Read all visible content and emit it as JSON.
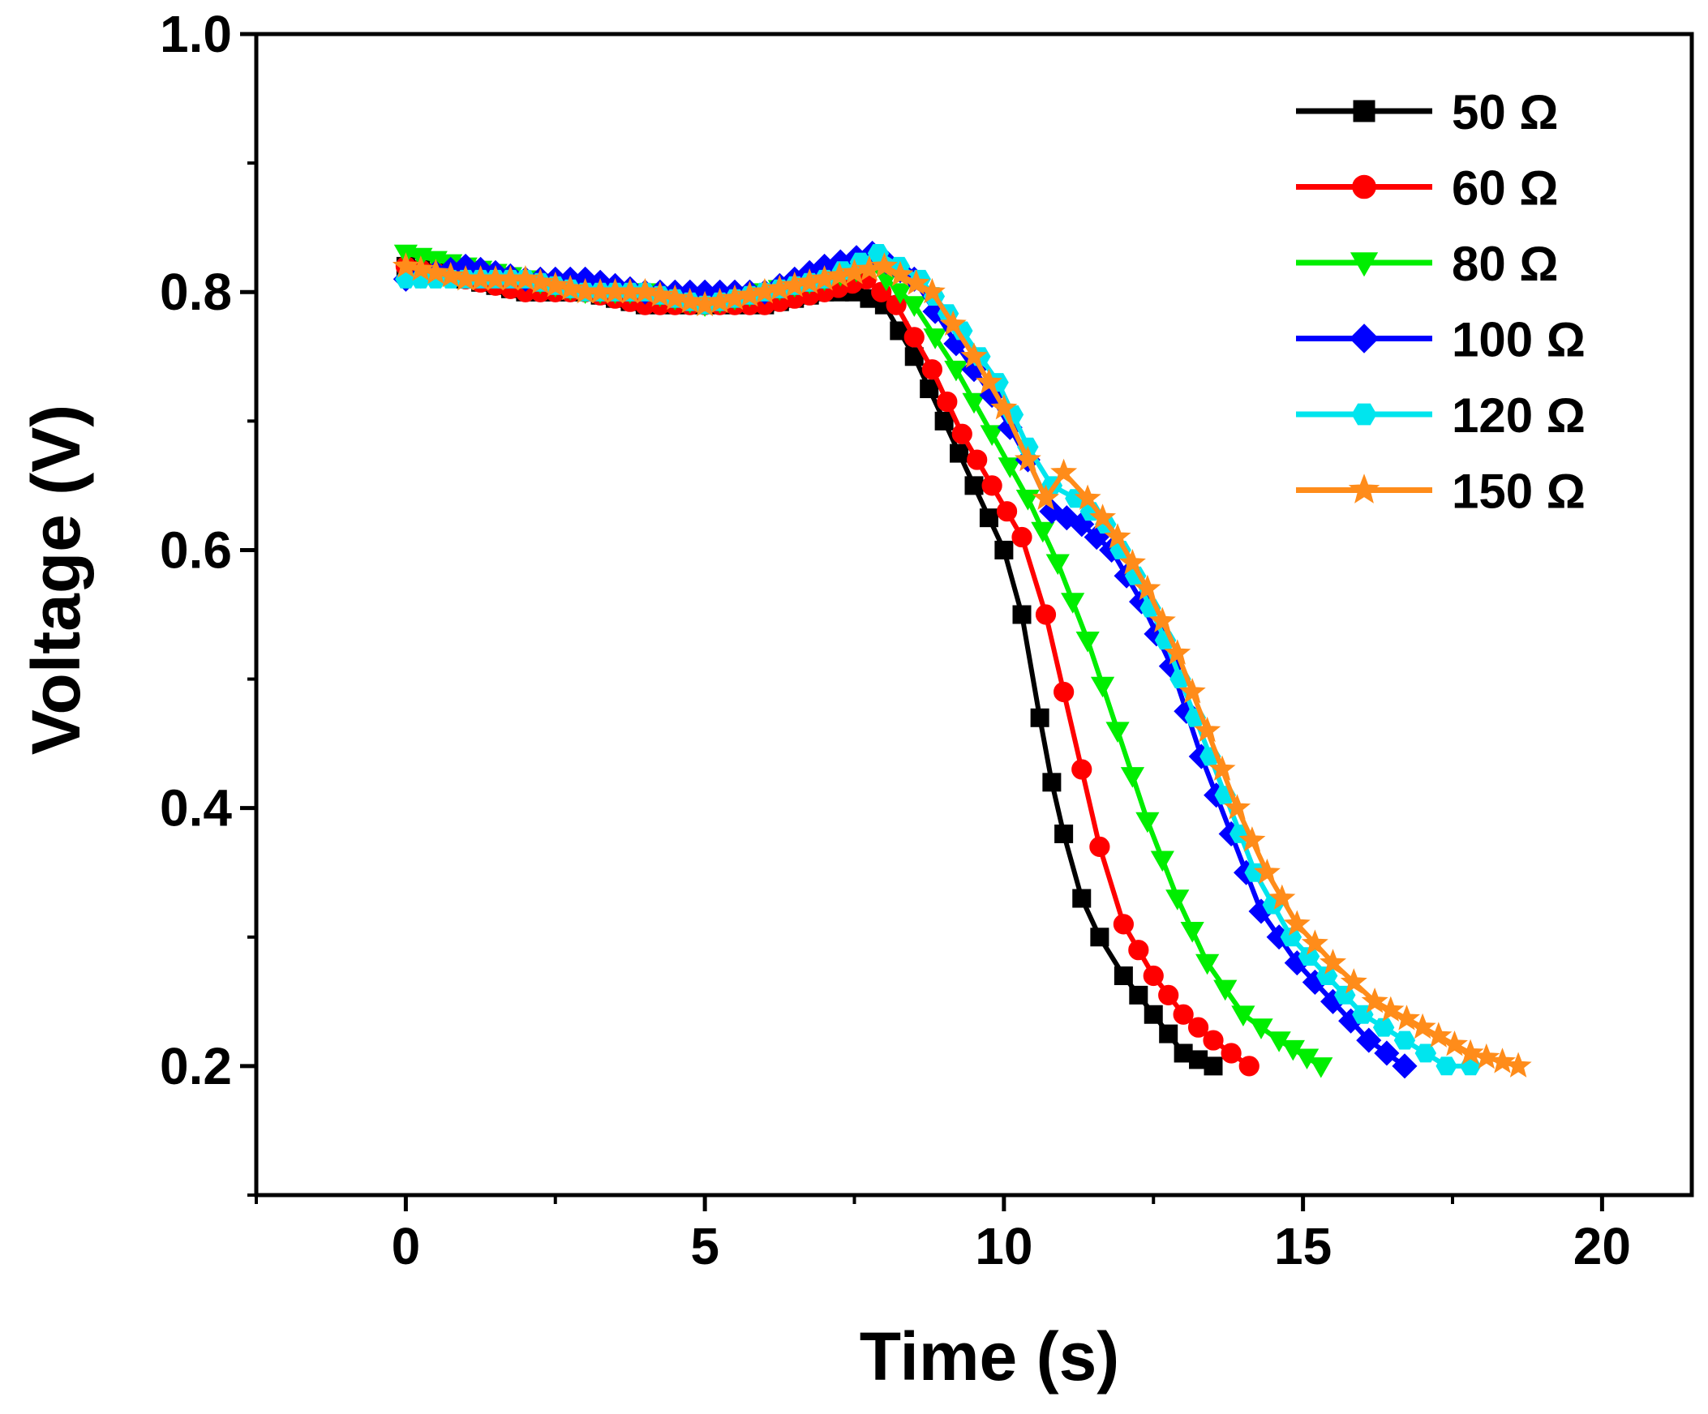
{
  "chart_data": {
    "type": "line",
    "title": "",
    "xlabel": "Time (s)",
    "ylabel": "Voltage (V)",
    "xlim": [
      -2.5,
      21.5
    ],
    "ylim": [
      0.1,
      1.0
    ],
    "x_ticks": [
      0,
      5,
      10,
      15,
      20
    ],
    "x_tick_labels": [
      "0",
      "5",
      "10",
      "15",
      "20"
    ],
    "y_ticks": [
      0.2,
      0.4,
      0.6,
      0.8,
      1.0
    ],
    "y_tick_labels": [
      "0.2",
      "0.4",
      "0.6",
      "0.8",
      "1.0"
    ],
    "grid": false,
    "legend_position": "top-right",
    "series": [
      {
        "name": "50 Ω",
        "color": "#000000",
        "marker": "square",
        "points": [
          [
            0,
            0.82
          ],
          [
            1,
            0.81
          ],
          [
            2,
            0.8
          ],
          [
            3,
            0.8
          ],
          [
            4,
            0.79
          ],
          [
            5,
            0.79
          ],
          [
            6,
            0.79
          ],
          [
            7,
            0.8
          ],
          [
            7.5,
            0.8
          ],
          [
            8,
            0.79
          ],
          [
            8.5,
            0.75
          ],
          [
            9,
            0.7
          ],
          [
            9.5,
            0.65
          ],
          [
            10,
            0.6
          ],
          [
            10.3,
            0.55
          ],
          [
            10.6,
            0.47
          ],
          [
            10.8,
            0.42
          ],
          [
            11,
            0.38
          ],
          [
            11.3,
            0.33
          ],
          [
            11.6,
            0.3
          ],
          [
            12,
            0.27
          ],
          [
            12.5,
            0.24
          ],
          [
            13,
            0.21
          ],
          [
            13.5,
            0.2
          ]
        ]
      },
      {
        "name": "60 Ω",
        "color": "#ff0000",
        "marker": "circle",
        "points": [
          [
            0,
            0.82
          ],
          [
            1,
            0.81
          ],
          [
            2,
            0.8
          ],
          [
            3,
            0.8
          ],
          [
            4,
            0.79
          ],
          [
            5,
            0.79
          ],
          [
            6,
            0.79
          ],
          [
            7,
            0.8
          ],
          [
            7.7,
            0.81
          ],
          [
            8.2,
            0.79
          ],
          [
            8.8,
            0.74
          ],
          [
            9.3,
            0.69
          ],
          [
            9.8,
            0.65
          ],
          [
            10.3,
            0.61
          ],
          [
            10.7,
            0.55
          ],
          [
            11,
            0.49
          ],
          [
            11.3,
            0.43
          ],
          [
            11.6,
            0.37
          ],
          [
            12,
            0.31
          ],
          [
            12.5,
            0.27
          ],
          [
            13,
            0.24
          ],
          [
            13.5,
            0.22
          ],
          [
            14.1,
            0.2
          ]
        ]
      },
      {
        "name": "80 Ω",
        "color": "#00ee00",
        "marker": "triangle-down",
        "points": [
          [
            0,
            0.83
          ],
          [
            1,
            0.82
          ],
          [
            2,
            0.81
          ],
          [
            3,
            0.8
          ],
          [
            4,
            0.8
          ],
          [
            5,
            0.79
          ],
          [
            6,
            0.8
          ],
          [
            7,
            0.81
          ],
          [
            7.8,
            0.82
          ],
          [
            8.5,
            0.79
          ],
          [
            9.2,
            0.74
          ],
          [
            9.8,
            0.69
          ],
          [
            10.4,
            0.64
          ],
          [
            10.9,
            0.59
          ],
          [
            11.4,
            0.53
          ],
          [
            11.9,
            0.46
          ],
          [
            12.4,
            0.39
          ],
          [
            12.9,
            0.33
          ],
          [
            13.4,
            0.28
          ],
          [
            14,
            0.24
          ],
          [
            14.6,
            0.22
          ],
          [
            15.3,
            0.2
          ]
        ]
      },
      {
        "name": "100 Ω",
        "color": "#0000ff",
        "marker": "diamond",
        "points": [
          [
            0,
            0.81
          ],
          [
            1,
            0.82
          ],
          [
            2,
            0.81
          ],
          [
            3,
            0.81
          ],
          [
            4,
            0.8
          ],
          [
            5,
            0.8
          ],
          [
            6,
            0.8
          ],
          [
            7,
            0.82
          ],
          [
            7.8,
            0.83
          ],
          [
            8.5,
            0.81
          ],
          [
            9.2,
            0.76
          ],
          [
            9.8,
            0.72
          ],
          [
            10.4,
            0.67
          ],
          [
            10.8,
            0.63
          ],
          [
            11.3,
            0.62
          ],
          [
            11.8,
            0.6
          ],
          [
            12.3,
            0.56
          ],
          [
            12.8,
            0.51
          ],
          [
            13.3,
            0.44
          ],
          [
            13.8,
            0.38
          ],
          [
            14.3,
            0.32
          ],
          [
            14.9,
            0.28
          ],
          [
            15.5,
            0.25
          ],
          [
            16.1,
            0.22
          ],
          [
            16.7,
            0.2
          ]
        ]
      },
      {
        "name": "120 Ω",
        "color": "#00e5ee",
        "marker": "hexagon",
        "points": [
          [
            0,
            0.81
          ],
          [
            1,
            0.81
          ],
          [
            2,
            0.81
          ],
          [
            3,
            0.8
          ],
          [
            4,
            0.8
          ],
          [
            5,
            0.79
          ],
          [
            6,
            0.8
          ],
          [
            7,
            0.81
          ],
          [
            7.9,
            0.83
          ],
          [
            8.6,
            0.81
          ],
          [
            9.3,
            0.77
          ],
          [
            9.9,
            0.73
          ],
          [
            10.4,
            0.68
          ],
          [
            10.8,
            0.65
          ],
          [
            11.2,
            0.64
          ],
          [
            11.7,
            0.62
          ],
          [
            12.2,
            0.58
          ],
          [
            12.7,
            0.53
          ],
          [
            13.2,
            0.47
          ],
          [
            13.7,
            0.41
          ],
          [
            14.2,
            0.35
          ],
          [
            14.8,
            0.3
          ],
          [
            15.4,
            0.27
          ],
          [
            16,
            0.24
          ],
          [
            16.7,
            0.22
          ],
          [
            17.4,
            0.2
          ],
          [
            17.8,
            0.2
          ]
        ]
      },
      {
        "name": "150 Ω",
        "color": "#ff8c1a",
        "marker": "star",
        "points": [
          [
            0,
            0.82
          ],
          [
            1,
            0.81
          ],
          [
            2,
            0.81
          ],
          [
            3,
            0.8
          ],
          [
            4,
            0.8
          ],
          [
            5,
            0.79
          ],
          [
            6,
            0.8
          ],
          [
            7,
            0.81
          ],
          [
            8,
            0.82
          ],
          [
            8.8,
            0.8
          ],
          [
            9.5,
            0.75
          ],
          [
            10,
            0.71
          ],
          [
            10.4,
            0.67
          ],
          [
            10.7,
            0.64
          ],
          [
            11,
            0.66
          ],
          [
            11.4,
            0.64
          ],
          [
            11.9,
            0.61
          ],
          [
            12.4,
            0.57
          ],
          [
            12.9,
            0.52
          ],
          [
            13.4,
            0.46
          ],
          [
            13.9,
            0.4
          ],
          [
            14.4,
            0.35
          ],
          [
            14.9,
            0.31
          ],
          [
            15.5,
            0.28
          ],
          [
            16.2,
            0.25
          ],
          [
            17,
            0.23
          ],
          [
            17.8,
            0.21
          ],
          [
            18.6,
            0.2
          ]
        ]
      }
    ]
  }
}
